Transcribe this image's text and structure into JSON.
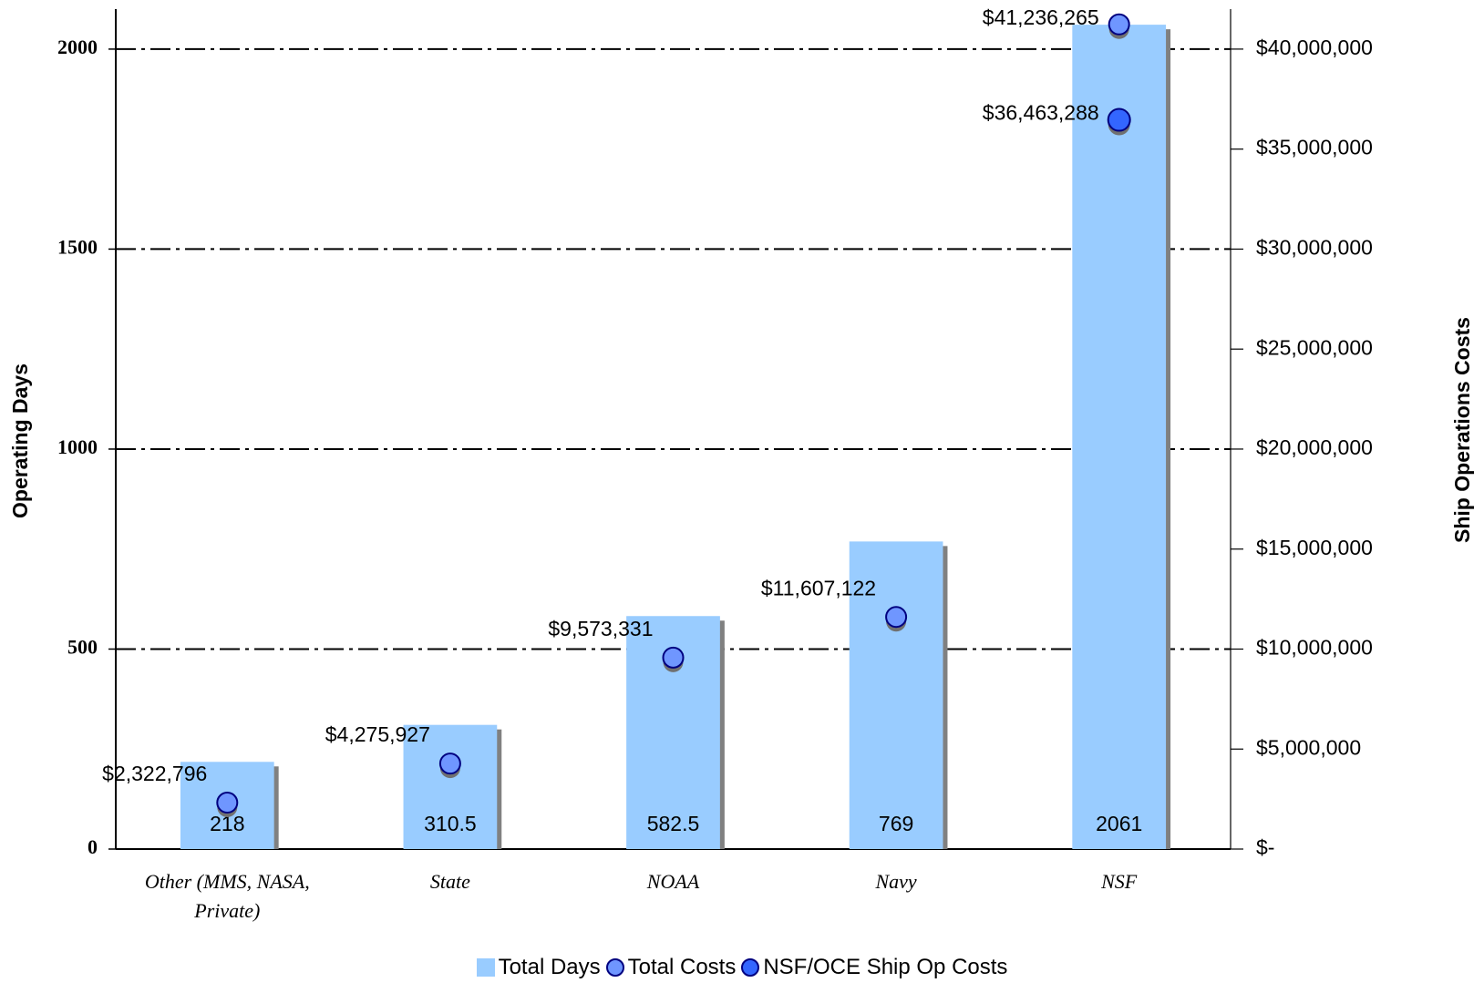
{
  "chart_data": {
    "type": "bar",
    "categories": [
      "Other (MMS, NASA, Private)",
      "State",
      "NOAA",
      "Navy",
      "NSF"
    ],
    "series": [
      {
        "name": "Total Days",
        "type": "bar",
        "color": "#99ccff",
        "values": [
          218,
          310.5,
          582.5,
          769,
          2061
        ]
      },
      {
        "name": "Total Costs",
        "type": "scatter",
        "axis": "y2",
        "color": "#6f96ff",
        "values": [
          2322796,
          4275927,
          9573331,
          11607122,
          41236265
        ],
        "value_labels": [
          "$2,322,796",
          "$4,275,927",
          "$9,573,331",
          "$11,607,122",
          "$41,236,265"
        ]
      },
      {
        "name": "NSF/OCE Ship Op Costs",
        "type": "scatter",
        "axis": "y2",
        "color": "#3366ff",
        "values": [
          null,
          null,
          null,
          null,
          36463288
        ],
        "value_labels": [
          null,
          null,
          null,
          null,
          "$36,463,288"
        ]
      }
    ],
    "y_label": "Operating Days",
    "y2_label": "Ship Operations Costs",
    "ylim": [
      0,
      2100
    ],
    "yticks": [
      0,
      500,
      1000,
      1500,
      2000
    ],
    "y2lim": [
      0,
      42000000
    ],
    "y2ticks": [
      {
        "value": 0,
        "label": "$-"
      },
      {
        "value": 5000000,
        "label": "$5,000,000"
      },
      {
        "value": 10000000,
        "label": "$10,000,000"
      },
      {
        "value": 15000000,
        "label": "$15,000,000"
      },
      {
        "value": 20000000,
        "label": "$20,000,000"
      },
      {
        "value": 25000000,
        "label": "$25,000,000"
      },
      {
        "value": 30000000,
        "label": "$30,000,000"
      },
      {
        "value": 35000000,
        "label": "$35,000,000"
      },
      {
        "value": 40000000,
        "label": "$40,000,000"
      }
    ],
    "grid": true,
    "legend": "bottom"
  }
}
